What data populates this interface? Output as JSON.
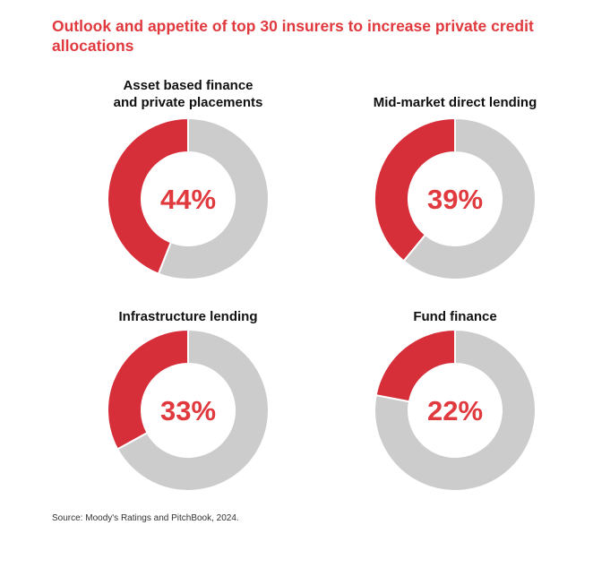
{
  "title": "Outlook and appetite of top 30 insurers to increase private credit allocations",
  "source": "Source: Moody's Ratings and PitchBook, 2024.",
  "colors": {
    "accent": "#e0393e",
    "highlight": "#d62f3a",
    "remainder": "#cccccc",
    "label_text": "#111111"
  },
  "chart_data": [
    {
      "type": "pie",
      "title": "Asset based finance\nand private placements",
      "value": 44,
      "label": "44%"
    },
    {
      "type": "pie",
      "title": "Mid-market direct lending",
      "value": 39,
      "label": "39%"
    },
    {
      "type": "pie",
      "title": "Infrastructure lending",
      "value": 33,
      "label": "33%"
    },
    {
      "type": "pie",
      "title": "Fund finance",
      "value": 22,
      "label": "22%"
    }
  ]
}
